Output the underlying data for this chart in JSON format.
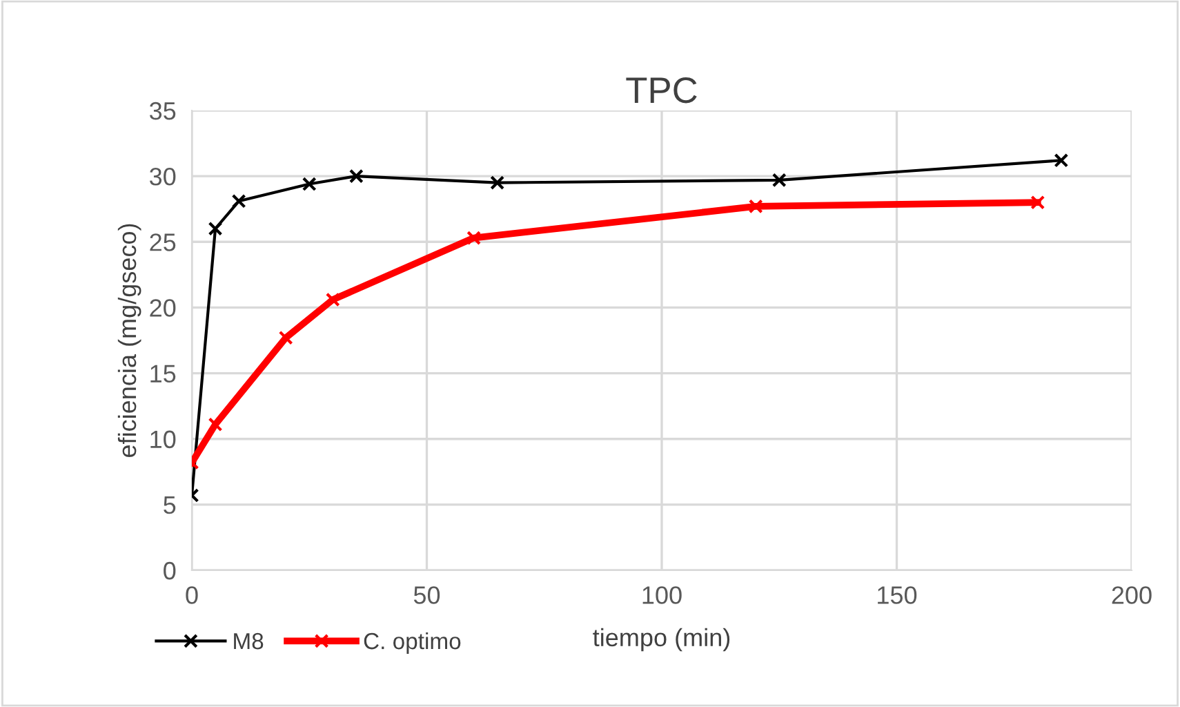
{
  "chart_data": {
    "type": "line",
    "title": "TPC",
    "xlabel": "tiempo (min)",
    "ylabel": "eficiencia (mg/gseco)",
    "series": [
      {
        "name": "M8",
        "color": "#000000",
        "x": [
          0,
          5,
          10,
          25,
          35,
          65,
          125,
          185
        ],
        "values": [
          5.7,
          26,
          28.1,
          29.4,
          30,
          29.5,
          29.7,
          31.2
        ]
      },
      {
        "name": "C. optimo",
        "color": "#ff0000",
        "x": [
          0,
          5,
          20,
          30,
          60,
          120,
          180
        ],
        "values": [
          8.2,
          11.1,
          17.7,
          20.6,
          25.3,
          27.7,
          28.0
        ]
      }
    ],
    "xlim": [
      0,
      200
    ],
    "xticks": [
      0,
      50,
      100,
      150,
      200
    ],
    "ylim": [
      0,
      35
    ],
    "yticks": [
      0,
      5,
      10,
      15,
      20,
      25,
      30,
      35
    ],
    "grid": true,
    "legend": "bottom",
    "marker": "cross",
    "line_style": "solid"
  }
}
